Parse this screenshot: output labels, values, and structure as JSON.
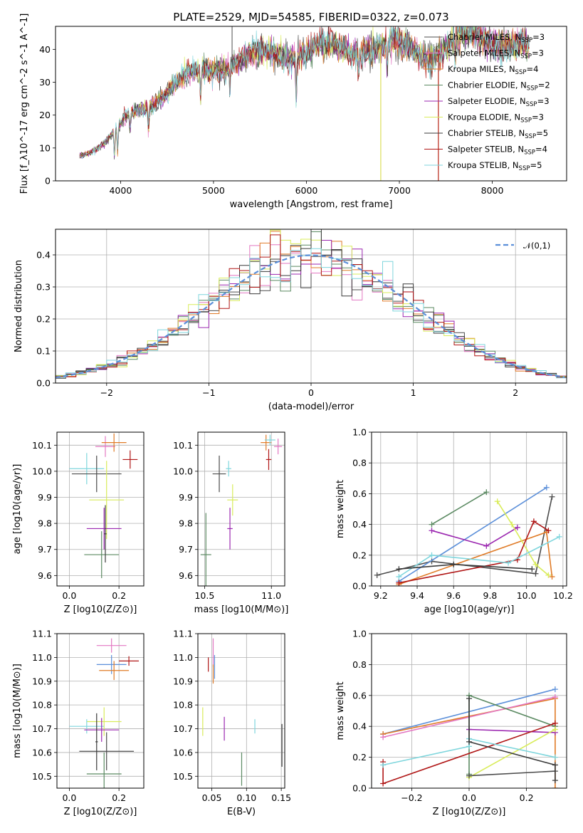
{
  "chart_data": [
    {
      "type": "line",
      "panel": "spectrum",
      "title": "PLATE=2529, MJD=54585, FIBERID=0322, z=0.073",
      "xlabel": "wavelength [Angstrom, rest frame]",
      "ylabel": "Flux [f_λ10^-17 erg cm^-2 s^-1 A^-1]",
      "xlim": [
        3300,
        8800
      ],
      "ylim": [
        0,
        47
      ],
      "xticks": [
        4000,
        5000,
        6000,
        7000,
        8000
      ],
      "yticks": [
        0,
        10,
        20,
        30,
        40
      ],
      "legend_position": "upper right",
      "grid": false,
      "series": [
        {
          "name": "Chabrier MILES, N_SSP=3",
          "color": "#4c4c4c"
        },
        {
          "name": "Salpeter MILES, N_SSP=3",
          "color": "#e377c2"
        },
        {
          "name": "Kroupa MILES, N_SSP=4",
          "color": "#e07b27"
        },
        {
          "name": "Chabrier ELODIE, N_SSP=2",
          "color": "#5b8a62"
        },
        {
          "name": "Salpeter ELODIE, N_SSP=3",
          "color": "#9b27b0"
        },
        {
          "name": "Kroupa ELODIE, N_SSP=3",
          "color": "#d9ec5a"
        },
        {
          "name": "Chabrier STELIB, N_SSP=5",
          "color": "#3a3a3a"
        },
        {
          "name": "Salpeter STELIB, N_SSP=4",
          "color": "#b01616"
        },
        {
          "name": "Kroupa STELIB, N_SSP=5",
          "color": "#7fd6dd"
        }
      ],
      "continuum_x": [
        3560,
        3700,
        3850,
        3950,
        4050,
        4200,
        4350,
        4500,
        4700,
        4900,
        5100,
        5300,
        5500,
        5700,
        5900,
        6100,
        6300,
        6500,
        6700,
        6900,
        7100,
        7300,
        7500,
        7700,
        8000,
        8300,
        8400
      ],
      "continuum_y": [
        8,
        9,
        12,
        15,
        19,
        22,
        24,
        27,
        31,
        34,
        35,
        37,
        38,
        39,
        39,
        40,
        40,
        40,
        41,
        41,
        40,
        38,
        41,
        43,
        43,
        42,
        39
      ]
    },
    {
      "type": "histogram",
      "panel": "residuals",
      "xlabel": "(data-model)/error",
      "ylabel": "Normed distribution",
      "xlim": [
        -2.5,
        2.5
      ],
      "ylim": [
        0,
        0.48
      ],
      "xticks": [
        -2,
        -1,
        0,
        1,
        2
      ],
      "yticks": [
        0.0,
        0.1,
        0.2,
        0.3,
        0.4
      ],
      "grid": true,
      "legend_position": "upper right",
      "reference_curve": {
        "name": "𝒩(0,1)",
        "color": "#5b8fd9",
        "style": "dashed"
      },
      "bin_width": 0.1
    },
    {
      "type": "scatter",
      "panel": "age-vs-Z",
      "xlabel": "Z [log10(Z/Z⊙)]",
      "ylabel": "age  [log10(age/yr)]",
      "xlim": [
        -0.05,
        0.3
      ],
      "ylim": [
        9.56,
        10.15
      ],
      "xticks": [
        0.0,
        0.2
      ],
      "yticks": [
        9.6,
        9.7,
        9.8,
        9.9,
        10.0,
        10.1
      ],
      "grid": true,
      "points": [
        {
          "color": "#e377c2",
          "x": 0.145,
          "y": 10.095,
          "xerr": 0.04,
          "yerr": 0.04
        },
        {
          "color": "#e07b27",
          "x": 0.18,
          "y": 10.11,
          "xerr": 0.05,
          "yerr": 0.035
        },
        {
          "color": "#b01616",
          "x": 0.245,
          "y": 10.045,
          "xerr": 0.03,
          "yerr": 0.035
        },
        {
          "color": "#7fd6dd",
          "x": 0.07,
          "y": 10.01,
          "xerr": 0.07,
          "yerr": 0.06
        },
        {
          "color": "#4c4c4c",
          "x": 0.11,
          "y": 9.99,
          "xerr": 0.1,
          "yerr": 0.07
        },
        {
          "color": "#d9ec5a",
          "x": 0.15,
          "y": 9.89,
          "xerr": 0.07,
          "yerr": 0.15
        },
        {
          "color": "#9b27b0",
          "x": 0.14,
          "y": 9.78,
          "xerr": 0.07,
          "yerr": 0.08
        },
        {
          "color": "#5b8a62",
          "x": 0.13,
          "y": 9.68,
          "xerr": 0.07,
          "yerr": 0.09
        },
        {
          "color": "#3a3a3a",
          "x": 0.145,
          "y": 9.76,
          "xerr": 0.005,
          "yerr": 0.11
        }
      ]
    },
    {
      "type": "scatter",
      "panel": "age-vs-mass",
      "xlabel": "mass [log10(M/M⊙)]",
      "ylabel": "",
      "xlim": [
        10.45,
        11.1
      ],
      "ylim": [
        9.56,
        10.15
      ],
      "xticks": [
        10.5,
        11.0
      ],
      "yticks": [
        9.6,
        9.7,
        9.8,
        9.9,
        10.0,
        10.1
      ],
      "grid": true,
      "points": [
        {
          "color": "#e377c2",
          "x": 11.05,
          "y": 10.095,
          "xerr": 0.03,
          "yerr": 0.03
        },
        {
          "color": "#e07b27",
          "x": 10.96,
          "y": 10.11,
          "xerr": 0.04,
          "yerr": 0.03
        },
        {
          "color": "#7fd6dd",
          "x": 10.99,
          "y": 10.12,
          "xerr": 0.04,
          "yerr": 0.02
        },
        {
          "color": "#b01616",
          "x": 10.98,
          "y": 10.045,
          "xerr": 0.02,
          "yerr": 0.04
        },
        {
          "color": "#4c4c4c",
          "x": 10.61,
          "y": 9.99,
          "xerr": 0.05,
          "yerr": 0.07
        },
        {
          "color": "#7fd6dd",
          "x": 10.68,
          "y": 10.01,
          "xerr": 0.02,
          "yerr": 0.03
        },
        {
          "color": "#d9ec5a",
          "x": 10.71,
          "y": 9.89,
          "xerr": 0.04,
          "yerr": 0.06
        },
        {
          "color": "#9b27b0",
          "x": 10.69,
          "y": 9.78,
          "xerr": 0.02,
          "yerr": 0.08
        },
        {
          "color": "#5b8a62",
          "x": 10.51,
          "y": 9.68,
          "xerr": 0.04,
          "yerr": 0.16
        }
      ]
    },
    {
      "type": "line",
      "panel": "mass-weight-vs-age",
      "xlabel": "age  [log10(age/yr)]",
      "ylabel": "mass weight",
      "xlim": [
        9.15,
        10.22
      ],
      "ylim": [
        0,
        1.0
      ],
      "xticks": [
        9.2,
        9.4,
        9.6,
        9.8,
        10.0,
        10.2
      ],
      "yticks": [
        0.0,
        0.2,
        0.4,
        0.6,
        0.8,
        1.0
      ],
      "grid": true,
      "series": [
        {
          "color": "#4c4c4c",
          "x": [
            9.18,
            9.48,
            10.05,
            10.14
          ],
          "y": [
            0.07,
            0.16,
            0.08,
            0.58
          ]
        },
        {
          "color": "#5b8fd9",
          "x": [
            9.3,
            10.11
          ],
          "y": [
            0.03,
            0.64
          ]
        },
        {
          "color": "#e07b27",
          "x": [
            9.3,
            10.11,
            10.14
          ],
          "y": [
            0.01,
            0.35,
            0.06
          ]
        },
        {
          "color": "#5b8a62",
          "x": [
            9.48,
            9.78
          ],
          "y": [
            0.4,
            0.61
          ]
        },
        {
          "color": "#9b27b0",
          "x": [
            9.48,
            9.78,
            9.95
          ],
          "y": [
            0.36,
            0.26,
            0.38
          ]
        },
        {
          "color": "#d9ec5a",
          "x": [
            9.84,
            9.92,
            10.05,
            10.12
          ],
          "y": [
            0.55,
            0.4,
            0.14,
            0.07
          ]
        },
        {
          "color": "#b01616",
          "x": [
            9.3,
            9.95,
            10.04,
            10.12
          ],
          "y": [
            0.02,
            0.17,
            0.42,
            0.36
          ]
        },
        {
          "color": "#7fd6dd",
          "x": [
            9.3,
            9.48,
            9.9,
            10.18
          ],
          "y": [
            0.06,
            0.2,
            0.15,
            0.32
          ]
        },
        {
          "color": "#3a3a3a",
          "x": [
            9.3,
            9.6,
            10.03
          ],
          "y": [
            0.11,
            0.14,
            0.11
          ]
        }
      ]
    },
    {
      "type": "scatter",
      "panel": "mass-vs-Z",
      "xlabel": "Z [log10(Z/Z⊙)]",
      "ylabel": "mass [log10(M/M⊙)]",
      "xlim": [
        -0.05,
        0.3
      ],
      "ylim": [
        10.45,
        11.1
      ],
      "xticks": [
        0.0,
        0.2
      ],
      "yticks": [
        10.5,
        10.6,
        10.7,
        10.8,
        10.9,
        11.0,
        11.1
      ],
      "grid": true,
      "points": [
        {
          "color": "#e377c2",
          "x": 0.17,
          "y": 11.05,
          "xerr": 0.06,
          "yerr": 0.03
        },
        {
          "color": "#5b8fd9",
          "x": 0.17,
          "y": 10.97,
          "xerr": 0.06,
          "yerr": 0.04
        },
        {
          "color": "#e07b27",
          "x": 0.18,
          "y": 10.945,
          "xerr": 0.06,
          "yerr": 0.04
        },
        {
          "color": "#b01616",
          "x": 0.24,
          "y": 10.985,
          "xerr": 0.04,
          "yerr": 0.02
        },
        {
          "color": "#d9ec5a",
          "x": 0.14,
          "y": 10.73,
          "xerr": 0.07,
          "yerr": 0.06
        },
        {
          "color": "#7fd6dd",
          "x": 0.07,
          "y": 10.71,
          "xerr": 0.07,
          "yerr": 0.03
        },
        {
          "color": "#9b27b0",
          "x": 0.13,
          "y": 10.695,
          "xerr": 0.07,
          "yerr": 0.05
        },
        {
          "color": "#4c4c4c",
          "x": 0.15,
          "y": 10.605,
          "xerr": 0.11,
          "yerr": 0.08
        },
        {
          "color": "#5b8a62",
          "x": 0.14,
          "y": 10.51,
          "xerr": 0.07,
          "yerr": 0.09
        },
        {
          "color": "#3a3a3a",
          "x": 0.11,
          "y": 10.645,
          "xerr": 0.005,
          "yerr": 0.12
        }
      ]
    },
    {
      "type": "scatter",
      "panel": "mass-vs-EBV",
      "xlabel": "E(B-V)",
      "ylabel": "",
      "xlim": [
        0.03,
        0.155
      ],
      "ylim": [
        10.45,
        11.1
      ],
      "xticks": [
        0.05,
        0.1,
        0.15
      ],
      "yticks": [
        10.5,
        10.6,
        10.7,
        10.8,
        10.9,
        11.0,
        11.1
      ],
      "grid": true,
      "points": [
        {
          "color": "#e377c2",
          "x": 0.052,
          "y": 11.02,
          "xerr": 0.0,
          "yerr": 0.06
        },
        {
          "color": "#5b8fd9",
          "x": 0.054,
          "y": 10.96,
          "xerr": 0.0,
          "yerr": 0.05
        },
        {
          "color": "#e07b27",
          "x": 0.052,
          "y": 10.93,
          "xerr": 0.0,
          "yerr": 0.04
        },
        {
          "color": "#b01616",
          "x": 0.045,
          "y": 10.97,
          "xerr": 0.0,
          "yerr": 0.03
        },
        {
          "color": "#d9ec5a",
          "x": 0.037,
          "y": 10.73,
          "xerr": 0.0,
          "yerr": 0.06
        },
        {
          "color": "#9b27b0",
          "x": 0.068,
          "y": 10.7,
          "xerr": 0.0,
          "yerr": 0.05
        },
        {
          "color": "#7fd6dd",
          "x": 0.112,
          "y": 10.71,
          "xerr": 0.0,
          "yerr": 0.03
        },
        {
          "color": "#5b8a62",
          "x": 0.093,
          "y": 10.53,
          "xerr": 0.0,
          "yerr": 0.07
        },
        {
          "color": "#3a3a3a",
          "x": 0.151,
          "y": 10.63,
          "xerr": 0.0,
          "yerr": 0.09
        }
      ]
    },
    {
      "type": "line",
      "panel": "mass-weight-vs-Z",
      "xlabel": "Z [log10(Z/Z⊙)]",
      "ylabel": "mass weight",
      "xlim": [
        -0.34,
        0.34
      ],
      "ylim": [
        0,
        1.0
      ],
      "xticks": [
        -0.2,
        0.0,
        0.2
      ],
      "yticks": [
        0.0,
        0.2,
        0.4,
        0.6,
        0.8,
        1.0
      ],
      "grid": true,
      "series": [
        {
          "color": "#5b8fd9",
          "x": [
            -0.3,
            0.3
          ],
          "y": [
            0.35,
            0.64
          ]
        },
        {
          "color": "#e07b27",
          "x": [
            -0.3,
            0.3,
            0.3
          ],
          "y": [
            0.35,
            0.58,
            0.0
          ]
        },
        {
          "color": "#e377c2",
          "x": [
            -0.3,
            0.3
          ],
          "y": [
            0.33,
            0.59
          ]
        },
        {
          "color": "#5b8a62",
          "x": [
            0.0,
            0.0,
            0.3
          ],
          "y": [
            0.09,
            0.6,
            0.4
          ]
        },
        {
          "color": "#9b27b0",
          "x": [
            0.0,
            0.3
          ],
          "y": [
            0.38,
            0.36
          ]
        },
        {
          "color": "#d9ec5a",
          "x": [
            0.0,
            0.3
          ],
          "y": [
            0.07,
            0.38
          ]
        },
        {
          "color": "#b01616",
          "x": [
            -0.3,
            -0.3,
            0.3
          ],
          "y": [
            0.17,
            0.03,
            0.42
          ]
        },
        {
          "color": "#7fd6dd",
          "x": [
            -0.3,
            0.0,
            0.0,
            0.3
          ],
          "y": [
            0.15,
            0.27,
            0.32,
            0.2
          ]
        },
        {
          "color": "#4c4c4c",
          "x": [
            0.0,
            0.3
          ],
          "y": [
            0.08,
            0.11
          ]
        },
        {
          "color": "#3a3a3a",
          "x": [
            0.0,
            0.0,
            0.3,
            0.3
          ],
          "y": [
            0.58,
            0.3,
            0.15,
            0.05
          ]
        }
      ]
    }
  ]
}
